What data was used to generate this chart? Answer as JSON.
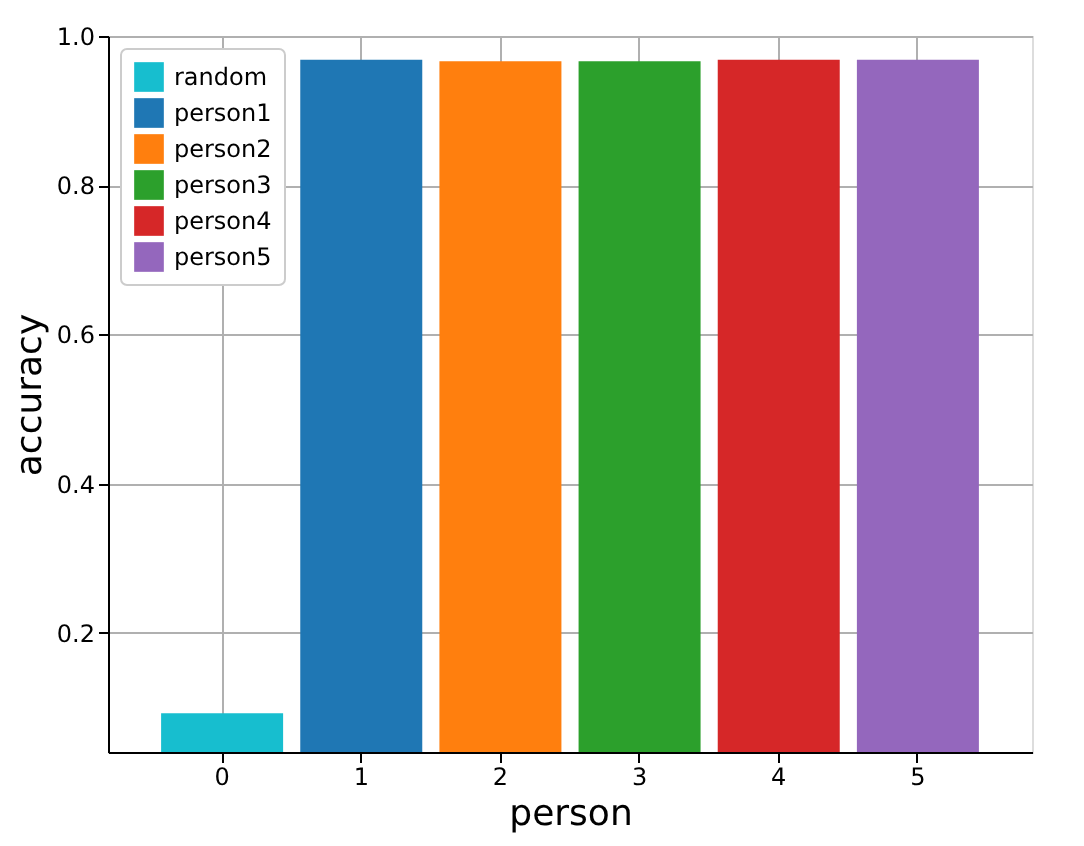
{
  "chart_data": {
    "type": "bar",
    "xlabel": "person",
    "ylabel": "accuracy",
    "categories": [
      "0",
      "1",
      "2",
      "3",
      "4",
      "5"
    ],
    "series": [
      {
        "name": "random",
        "color": "#17becf",
        "values": [
          0.092,
          null,
          null,
          null,
          null,
          null
        ]
      },
      {
        "name": "person1",
        "color": "#1f77b4",
        "values": [
          null,
          0.968,
          null,
          null,
          null,
          null
        ]
      },
      {
        "name": "person2",
        "color": "#ff7f0e",
        "values": [
          null,
          null,
          0.966,
          null,
          null,
          null
        ]
      },
      {
        "name": "person3",
        "color": "#2ca02c",
        "values": [
          null,
          null,
          null,
          0.966,
          null,
          null
        ]
      },
      {
        "name": "person4",
        "color": "#d62728",
        "values": [
          null,
          null,
          null,
          null,
          0.968,
          null
        ]
      },
      {
        "name": "person5",
        "color": "#9467bd",
        "values": [
          null,
          null,
          null,
          null,
          null,
          0.968
        ]
      }
    ],
    "ylim": [
      0.04,
      1.0
    ],
    "yticks": [
      0.2,
      0.4,
      0.6,
      0.8,
      {
        "value": 1,
        "label": "1.0"
      }
    ],
    "grid": true,
    "legend": "top left"
  }
}
